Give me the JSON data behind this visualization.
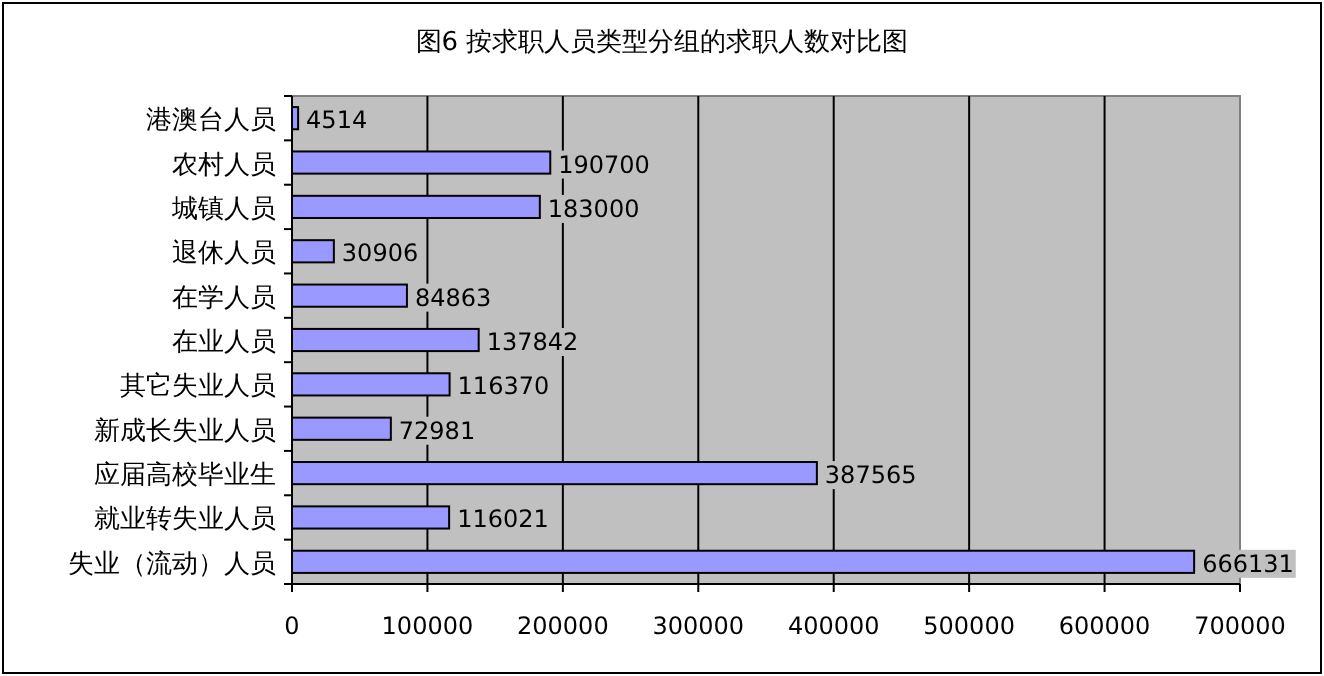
{
  "chart_data": {
    "type": "bar",
    "orientation": "horizontal",
    "title": "图6 按求职人员类型分组的求职人数对比图",
    "categories": [
      "港澳台人员",
      "农村人员",
      "城镇人员",
      "退休人员",
      "在学人员",
      "在业人员",
      "其它失业人员",
      "新成长失业人员",
      "应届高校毕业生",
      "就业转失业人员",
      "失业（流动）人员"
    ],
    "values": [
      4514,
      190700,
      183000,
      30906,
      84863,
      137842,
      116370,
      72981,
      387565,
      116021,
      666131
    ],
    "color": "#9999ff",
    "xlim": [
      0,
      700000
    ],
    "xticks": [
      0,
      100000,
      200000,
      300000,
      400000,
      500000,
      600000,
      700000
    ],
    "grid": "x",
    "data_labels": true
  }
}
